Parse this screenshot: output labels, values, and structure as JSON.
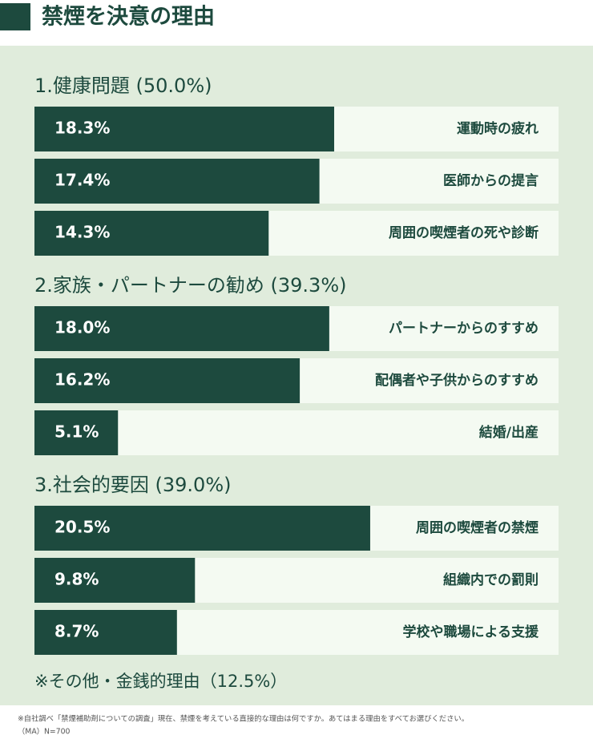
{
  "chart_data": {
    "type": "bar",
    "title": "禁煙を決意の理由",
    "xlim": [
      0,
      32
    ],
    "color": "#1d4a3e",
    "track_color": "#f4faf2",
    "groups": [
      {
        "title": "1.健康問題 (50.0%)",
        "categories": [
          "運動時の疲れ",
          "医師からの提言",
          "周囲の喫煙者の死や診断"
        ],
        "values": [
          18.3,
          17.4,
          14.3
        ],
        "value_labels": [
          "18.3%",
          "17.4%",
          "14.3%"
        ]
      },
      {
        "title": "2.家族・パートナーの勧め (39.3%)",
        "categories": [
          "パートナーからのすすめ",
          "配偶者や子供からのすすめ",
          "結婚/出産"
        ],
        "values": [
          18.0,
          16.2,
          5.1
        ],
        "value_labels": [
          "18.0%",
          "16.2%",
          "5.1%"
        ]
      },
      {
        "title": "3.社会的要因 (39.0%)",
        "categories": [
          "周囲の喫煙者の禁煙",
          "組織内での罰則",
          "学校や職場による支援"
        ],
        "values": [
          20.5,
          9.8,
          8.7
        ],
        "value_labels": [
          "20.5%",
          "9.8%",
          "8.7%"
        ]
      }
    ],
    "note": "※その他・金銭的理由（12.5%）",
    "footnotes": [
      "※自社調べ「禁煙補助剤についての調査」現在、禁煙を考えている直接的な理由は何ですか。あてはまる理由をすべてお選びください。",
      "（MA）N=700"
    ]
  }
}
